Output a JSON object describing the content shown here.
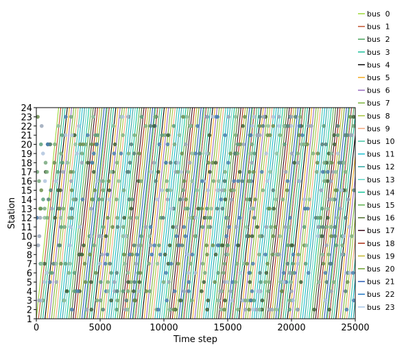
{
  "chart_data": {
    "type": "line",
    "title": "",
    "xlabel": "Time step",
    "ylabel": "Station",
    "xlim": [
      0,
      25000
    ],
    "ylim": [
      1,
      24
    ],
    "x_ticks": [
      0,
      5000,
      10000,
      15000,
      20000,
      25000
    ],
    "y_ticks": [
      1,
      2,
      3,
      4,
      5,
      6,
      7,
      8,
      9,
      10,
      11,
      12,
      13,
      14,
      15,
      16,
      17,
      18,
      19,
      20,
      21,
      22,
      23,
      24
    ],
    "legend_placement": "outside-top-right",
    "legend_prefix": "bus",
    "series": [
      {
        "name": "bus  0",
        "color": "#9ad834",
        "departures": [
          0,
          3800,
          7600,
          11400,
          15200,
          19000,
          22800
        ]
      },
      {
        "name": "bus  1",
        "color": "#c0502a",
        "departures": [
          170,
          3970,
          7770,
          11570,
          15370,
          19170,
          22970
        ]
      },
      {
        "name": "bus  2",
        "color": "#49a35c",
        "departures": [
          340,
          4140,
          7940,
          11740,
          15540,
          19340,
          23140
        ]
      },
      {
        "name": "bus  3",
        "color": "#1bbf9a",
        "departures": [
          510,
          4310,
          8110,
          11910,
          15710,
          19510,
          23310
        ]
      },
      {
        "name": "bus  4",
        "color": "#000000",
        "departures": [
          680,
          4480,
          8280,
          12080,
          15880,
          19680,
          23480
        ]
      },
      {
        "name": "bus  5",
        "color": "#f3a91e",
        "departures": [
          850,
          4650,
          8450,
          12250,
          16050,
          19850,
          23650
        ]
      },
      {
        "name": "bus  6",
        "color": "#9467bd",
        "departures": [
          1020,
          4820,
          8620,
          12420,
          16220,
          20020,
          23820
        ]
      },
      {
        "name": "bus  7",
        "color": "#79b338",
        "departures": [
          1190,
          4990,
          8790,
          12590,
          16390,
          20190,
          23990
        ]
      },
      {
        "name": "bus  8",
        "color": "#a5c63c",
        "departures": [
          1360,
          5160,
          8960,
          12760,
          16560,
          20360,
          24160
        ]
      },
      {
        "name": "bus  9",
        "color": "#f4a67c",
        "departures": [
          1530,
          5330,
          9130,
          12930,
          16730,
          20530,
          24330
        ]
      },
      {
        "name": "bus  10",
        "color": "#3fc2a3",
        "departures": [
          1700,
          5500,
          9300,
          13100,
          16900,
          20700,
          24500
        ]
      },
      {
        "name": "bus  11",
        "color": "#17becf",
        "departures": [
          1870,
          5670,
          9470,
          13270,
          17070,
          20870,
          24670
        ]
      },
      {
        "name": "bus  12",
        "color": "#2ca5a0",
        "departures": [
          2040,
          5840,
          9640,
          13440,
          17240,
          21040,
          24840
        ]
      },
      {
        "name": "bus  13",
        "color": "#5fd4c4",
        "departures": [
          2210,
          6010,
          9810,
          13610,
          17410,
          21210,
          25010
        ]
      },
      {
        "name": "bus  14",
        "color": "#10c497",
        "departures": [
          2380,
          6180,
          9980,
          13780,
          17580,
          21380
        ]
      },
      {
        "name": "bus  15",
        "color": "#5ab04b",
        "departures": [
          2550,
          6350,
          10150,
          13950,
          17750,
          21550
        ]
      },
      {
        "name": "bus  16",
        "color": "#4b6b2a",
        "departures": [
          2720,
          6520,
          10320,
          14120,
          17920,
          21720
        ]
      },
      {
        "name": "bus  17",
        "color": "#3a0a1a",
        "departures": [
          2890,
          6690,
          10490,
          14290,
          18090,
          21890
        ]
      },
      {
        "name": "bus  18",
        "color": "#a8290e",
        "departures": [
          3060,
          6860,
          10660,
          14460,
          18260,
          22060
        ]
      },
      {
        "name": "bus  19",
        "color": "#c2b72b",
        "departures": [
          3230,
          7030,
          10830,
          14630,
          18430,
          22230
        ]
      },
      {
        "name": "bus  20",
        "color": "#6aa12f",
        "departures": [
          3400,
          7200,
          11000,
          14800,
          18600,
          22400
        ]
      },
      {
        "name": "bus  21",
        "color": "#2457b2",
        "departures": [
          3570,
          7370,
          11170,
          14970,
          18770,
          22570
        ]
      },
      {
        "name": "bus  22",
        "color": "#1f77c4",
        "departures": [
          3740,
          7540,
          11340,
          15140,
          18940,
          22740
        ]
      },
      {
        "name": "bus  23",
        "color": "#a6c6e8",
        "departures": [
          3910,
          7710,
          11510,
          15310,
          19110,
          22910
        ]
      }
    ],
    "trip_duration": 1750,
    "stop_markers": {
      "colors": [
        "#6b8e4e",
        "#5a9e7a",
        "#8fbfa0",
        "#9aa7b8",
        "#4b7fb0",
        "#78a87e",
        "#b0c4de",
        "#55807a",
        "#3f5f3a",
        "#7fb07f"
      ],
      "per_station": 34
    }
  }
}
